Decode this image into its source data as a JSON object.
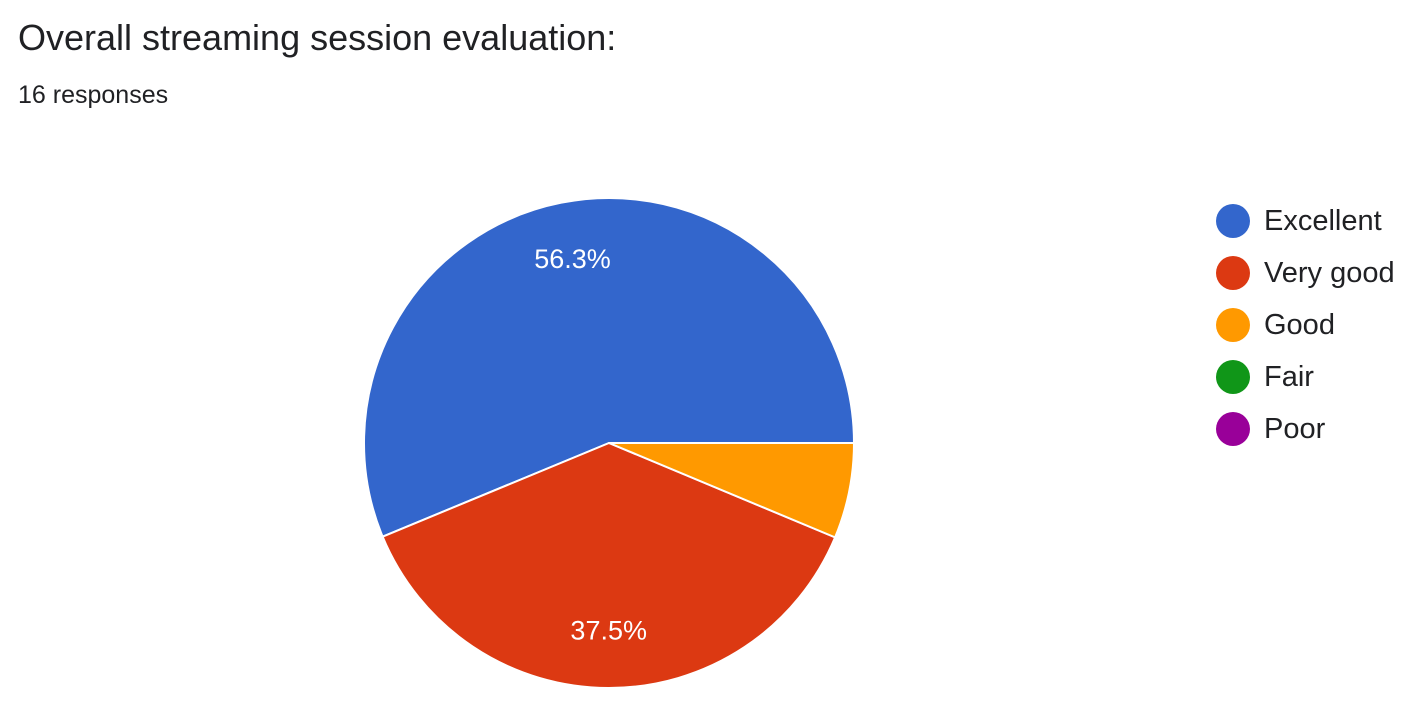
{
  "chart_data": {
    "type": "pie",
    "title": "Overall streaming session evaluation:",
    "subtitle": "16 responses",
    "legend_position": "right",
    "categories": [
      "Excellent",
      "Very good",
      "Good",
      "Fair",
      "Poor"
    ],
    "values": [
      56.3,
      37.5,
      6.3,
      0,
      0
    ],
    "data_labels": [
      "56.3%",
      "37.5%",
      "",
      "",
      ""
    ],
    "colors": [
      "#3366cc",
      "#dc3912",
      "#ff9900",
      "#109618",
      "#990099"
    ]
  }
}
